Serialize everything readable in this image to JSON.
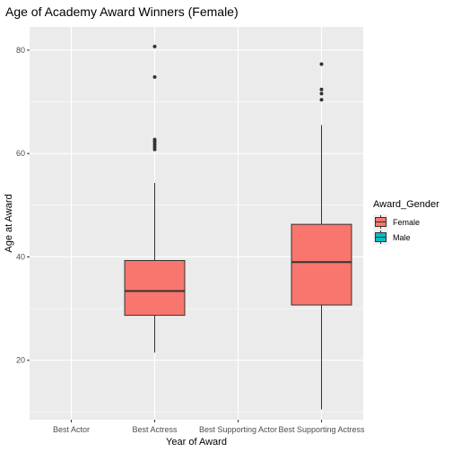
{
  "chart_data": {
    "type": "box",
    "title": "Age of Academy Award Winners (Female)",
    "xlabel": "Year of Award",
    "ylabel": "Age at Award",
    "categories": [
      "Best Actor",
      "Best Actress",
      "Best Supporting Actor",
      "Best Supporting Actress"
    ],
    "ylim": [
      8.5,
      84.5
    ],
    "yticks": [
      20,
      40,
      60,
      80
    ],
    "grid": true,
    "legend": {
      "title": "Award_Gender",
      "placement": "right",
      "entries": [
        {
          "name": "Female",
          "color": "#F8766D"
        },
        {
          "name": "Male",
          "color": "#00BFC4"
        }
      ]
    },
    "boxes": [
      {
        "category": "Best Actress",
        "gender": "Female",
        "lower_whisker": 21.5,
        "q1": 28.7,
        "median": 33.4,
        "q3": 39.3,
        "upper_whisker": 54.3,
        "outliers": [
          60.8,
          61.3,
          61.8,
          62.3,
          62.7,
          74.8,
          80.7
        ]
      },
      {
        "category": "Best Supporting Actress",
        "gender": "Female",
        "lower_whisker": 10.5,
        "q1": 30.7,
        "median": 39.0,
        "q3": 46.3,
        "upper_whisker": 65.5,
        "outliers": [
          70.4,
          71.6,
          72.4,
          77.3
        ]
      }
    ]
  }
}
